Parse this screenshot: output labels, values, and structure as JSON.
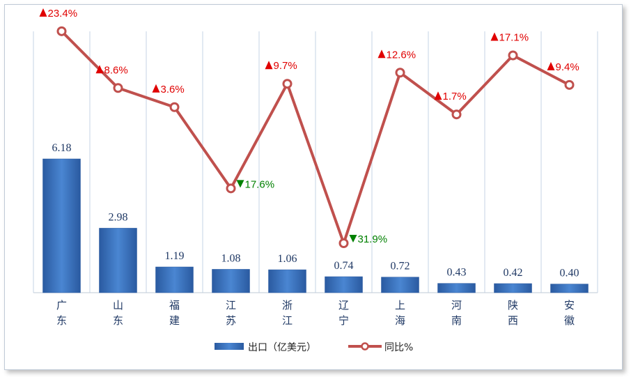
{
  "chart_data": {
    "type": "bar",
    "categories": [
      "广东",
      "山东",
      "福建",
      "江苏",
      "浙江",
      "辽宁",
      "上海",
      "河南",
      "陕西",
      "安徽"
    ],
    "series": [
      {
        "name": "出口（亿美元）",
        "type": "bar",
        "values": [
          6.18,
          2.98,
          1.19,
          1.08,
          1.06,
          0.74,
          0.72,
          0.43,
          0.42,
          0.4
        ],
        "labels": [
          "6.18",
          "2.98",
          "1.19",
          "1.08",
          "1.06",
          "0.74",
          "0.72",
          "0.43",
          "0.42",
          "0.40"
        ],
        "color": "#2e64b0"
      },
      {
        "name": "同比%",
        "type": "line",
        "values": [
          23.4,
          8.6,
          3.6,
          -17.6,
          9.7,
          -31.9,
          12.6,
          1.7,
          17.1,
          9.4
        ],
        "labels": [
          "23.4%",
          "8.6%",
          "3.6%",
          "17.6%",
          "9.7%",
          "31.9%",
          "12.6%",
          "1.7%",
          "17.1%",
          "9.4%"
        ],
        "color": "#c0504d"
      }
    ],
    "up_color": "#e00000",
    "down_color": "#008000",
    "legend_position": "bottom",
    "grid": "vertical"
  }
}
